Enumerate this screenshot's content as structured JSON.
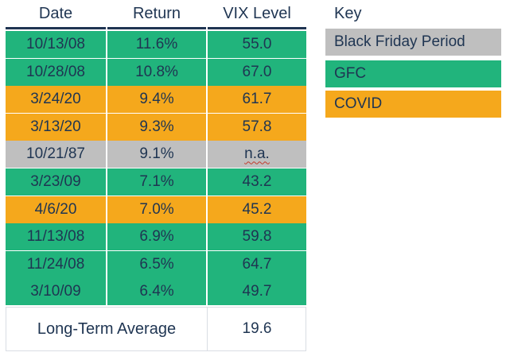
{
  "colors": {
    "gray": "#bfbfbf",
    "green": "#21b47c",
    "orange": "#f5a81c",
    "header": "#1f3552"
  },
  "table": {
    "headers": {
      "date": "Date",
      "return": "Return",
      "vix": "VIX Level"
    },
    "rows": [
      {
        "date": "10/13/08",
        "return": "11.6%",
        "vix": "55.0",
        "period": "green"
      },
      {
        "date": "10/28/08",
        "return": "10.8%",
        "vix": "67.0",
        "period": "green"
      },
      {
        "date": "3/24/20",
        "return": "9.4%",
        "vix": "61.7",
        "period": "orange"
      },
      {
        "date": "3/13/20",
        "return": "9.3%",
        "vix": "57.8",
        "period": "orange"
      },
      {
        "date": "10/21/87",
        "return": "9.1%",
        "vix": "n.a.",
        "period": "gray"
      },
      {
        "date": "3/23/09",
        "return": "7.1%",
        "vix": "43.2",
        "period": "green"
      },
      {
        "date": "4/6/20",
        "return": "7.0%",
        "vix": "45.2",
        "period": "orange"
      },
      {
        "date": "11/13/08",
        "return": "6.9%",
        "vix": "59.8",
        "period": "green"
      },
      {
        "date": "11/24/08",
        "return": "6.5%",
        "vix": "64.7",
        "period": "green"
      },
      {
        "date": "3/10/09",
        "return": "6.4%",
        "vix": "49.7",
        "period": "green"
      }
    ],
    "long_term_average": {
      "label": "Long-Term Average",
      "vix": "19.6"
    }
  },
  "key": {
    "title": "Key",
    "items": [
      {
        "label": "Black Friday Period",
        "period": "gray"
      },
      {
        "label": "GFC",
        "period": "green"
      },
      {
        "label": "COVID",
        "period": "orange"
      }
    ]
  }
}
